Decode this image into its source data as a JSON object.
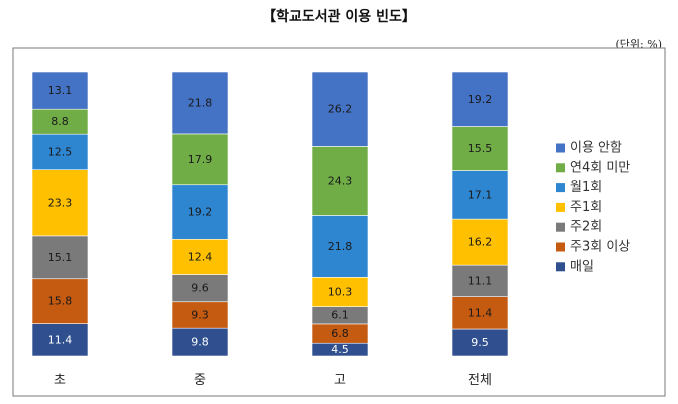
{
  "chart_data": {
    "type": "bar",
    "stacked": true,
    "percent_scale": true,
    "title": "【학교도서관 이용 빈도】",
    "unit_note": "(단위: %)",
    "categories": [
      "초",
      "중",
      "고",
      "전체"
    ],
    "series": [
      {
        "name": "매일",
        "color": "#2f4f8f",
        "label_color": "#ffffff",
        "values": [
          11.4,
          9.8,
          4.5,
          9.5
        ]
      },
      {
        "name": "주3회 이상",
        "color": "#c55a11",
        "label_color": "#1a1a1a",
        "values": [
          15.8,
          9.3,
          6.8,
          11.4
        ]
      },
      {
        "name": "주2회",
        "color": "#7a7a7a",
        "label_color": "#1a1a1a",
        "values": [
          15.1,
          9.6,
          6.1,
          11.1
        ]
      },
      {
        "name": "주1회",
        "color": "#ffc000",
        "label_color": "#1a1a1a",
        "values": [
          23.3,
          12.4,
          10.3,
          16.2
        ]
      },
      {
        "name": "월1회",
        "color": "#2e86d1",
        "label_color": "#1a1a1a",
        "values": [
          12.5,
          19.2,
          21.8,
          17.1
        ]
      },
      {
        "name": "연4회 미만",
        "color": "#70ad47",
        "label_color": "#1a1a1a",
        "values": [
          8.8,
          17.9,
          24.3,
          15.5
        ]
      },
      {
        "name": "이용 안함",
        "color": "#4472c4",
        "label_color": "#1a1a1a",
        "values": [
          13.1,
          21.8,
          26.2,
          19.2
        ]
      }
    ],
    "legend_position": "right",
    "legend_order": [
      "이용 안함",
      "연4회 미만",
      "월1회",
      "주1회",
      "주2회",
      "주3회 이상",
      "매일"
    ],
    "grid": false
  }
}
